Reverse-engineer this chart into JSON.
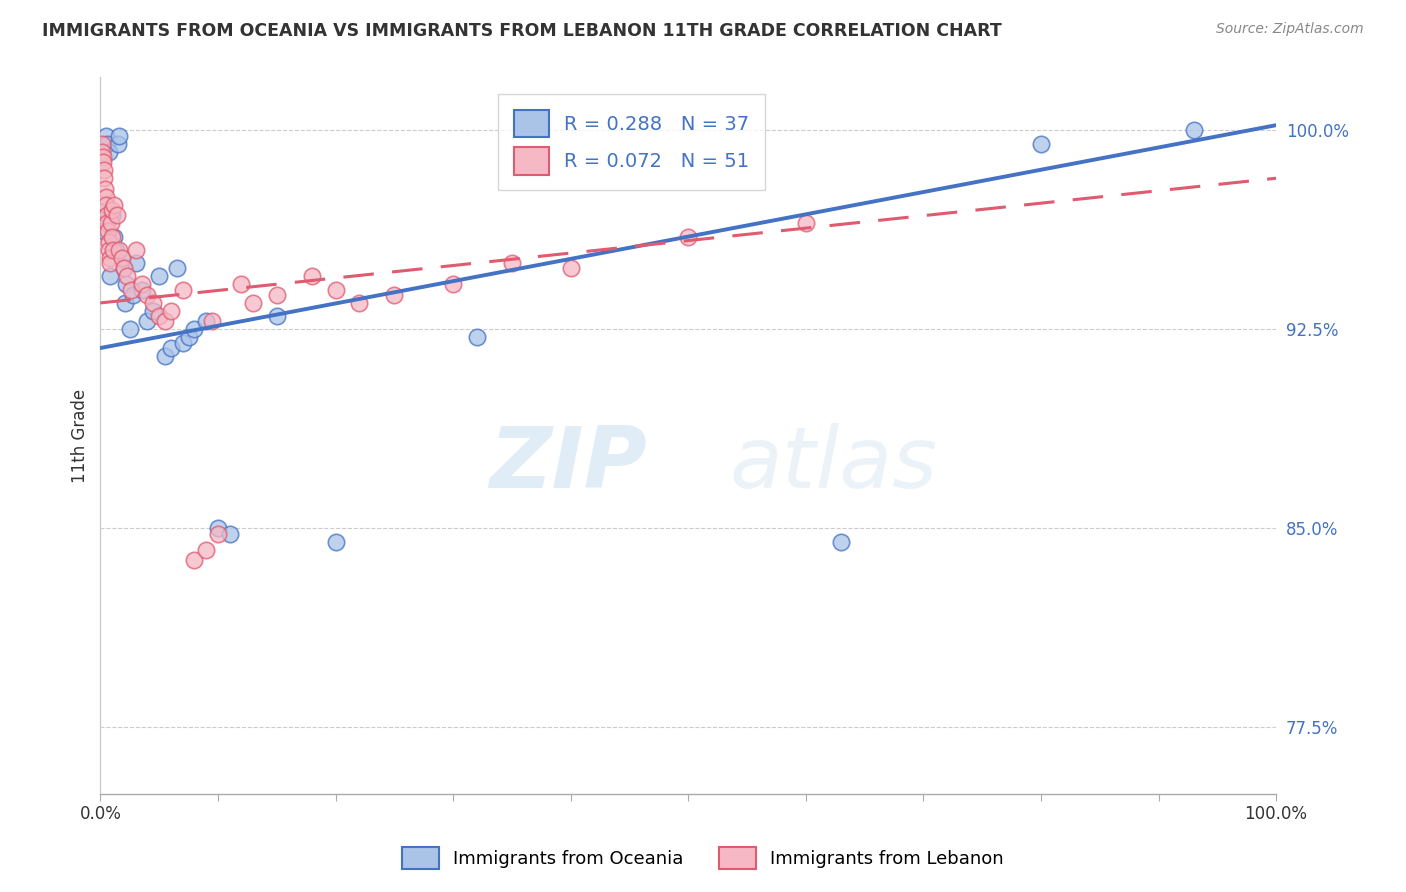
{
  "title": "IMMIGRANTS FROM OCEANIA VS IMMIGRANTS FROM LEBANON 11TH GRADE CORRELATION CHART",
  "source": "Source: ZipAtlas.com",
  "ylabel": "11th Grade",
  "xlim": [
    0.0,
    100.0
  ],
  "ylim": [
    75.0,
    102.0
  ],
  "yticks": [
    77.5,
    85.0,
    92.5,
    100.0
  ],
  "ytick_labels": [
    "77.5%",
    "85.0%",
    "92.5%",
    "100.0%"
  ],
  "xticks": [
    0.0,
    10.0,
    20.0,
    30.0,
    40.0,
    50.0,
    60.0,
    70.0,
    80.0,
    90.0,
    100.0
  ],
  "xtick_labels": [
    "0.0%",
    "",
    "",
    "",
    "",
    "",
    "",
    "",
    "",
    "",
    "100.0%"
  ],
  "legend_label1": "Immigrants from Oceania",
  "legend_label2": "Immigrants from Lebanon",
  "R1": 0.288,
  "N1": 37,
  "R2": 0.072,
  "N2": 51,
  "color_blue": "#aac4e8",
  "color_pink": "#f5b8c4",
  "line_color_blue": "#4472c4",
  "line_color_pink": "#e05a70",
  "watermark_zip": "ZIP",
  "watermark_atlas": "atlas",
  "blue_line_x0": 0,
  "blue_line_y0": 91.8,
  "blue_line_x1": 100,
  "blue_line_y1": 100.2,
  "pink_line_x0": 0,
  "pink_line_y0": 93.5,
  "pink_line_x1": 100,
  "pink_line_y1": 98.2,
  "oceania_x": [
    0.3,
    0.4,
    0.5,
    0.6,
    0.7,
    0.8,
    1.0,
    1.2,
    1.3,
    1.5,
    1.6,
    1.8,
    2.0,
    2.1,
    2.2,
    2.5,
    2.8,
    3.0,
    3.5,
    4.0,
    4.5,
    5.0,
    5.5,
    6.0,
    6.5,
    7.0,
    7.5,
    8.0,
    9.0,
    10.0,
    11.0,
    15.0,
    20.0,
    32.0,
    63.0,
    80.0,
    93.0
  ],
  "oceania_y": [
    96.2,
    97.0,
    99.8,
    99.5,
    99.2,
    94.5,
    96.8,
    96.0,
    95.5,
    99.5,
    99.8,
    95.2,
    94.8,
    93.5,
    94.2,
    92.5,
    93.8,
    95.0,
    94.0,
    92.8,
    93.2,
    94.5,
    91.5,
    91.8,
    94.8,
    92.0,
    92.2,
    92.5,
    92.8,
    85.0,
    84.8,
    93.0,
    84.5,
    92.2,
    84.5,
    99.5,
    100.0
  ],
  "lebanon_x": [
    0.1,
    0.15,
    0.2,
    0.25,
    0.3,
    0.35,
    0.4,
    0.45,
    0.5,
    0.55,
    0.6,
    0.65,
    0.7,
    0.75,
    0.8,
    0.85,
    0.9,
    0.95,
    1.0,
    1.1,
    1.2,
    1.4,
    1.6,
    1.8,
    2.0,
    2.3,
    2.6,
    3.0,
    3.5,
    4.0,
    4.5,
    5.0,
    5.5,
    6.0,
    7.0,
    8.0,
    9.0,
    9.5,
    10.0,
    12.0,
    13.0,
    15.0,
    18.0,
    20.0,
    22.0,
    25.0,
    30.0,
    35.0,
    40.0,
    50.0,
    60.0
  ],
  "lebanon_y": [
    99.5,
    99.2,
    99.0,
    98.8,
    98.5,
    98.2,
    97.8,
    97.5,
    97.2,
    96.8,
    96.5,
    96.2,
    95.8,
    95.5,
    95.2,
    95.0,
    96.5,
    97.0,
    96.0,
    95.5,
    97.2,
    96.8,
    95.5,
    95.2,
    94.8,
    94.5,
    94.0,
    95.5,
    94.2,
    93.8,
    93.5,
    93.0,
    92.8,
    93.2,
    94.0,
    83.8,
    84.2,
    92.8,
    84.8,
    94.2,
    93.5,
    93.8,
    94.5,
    94.0,
    93.5,
    93.8,
    94.2,
    95.0,
    94.8,
    96.0,
    96.5
  ]
}
